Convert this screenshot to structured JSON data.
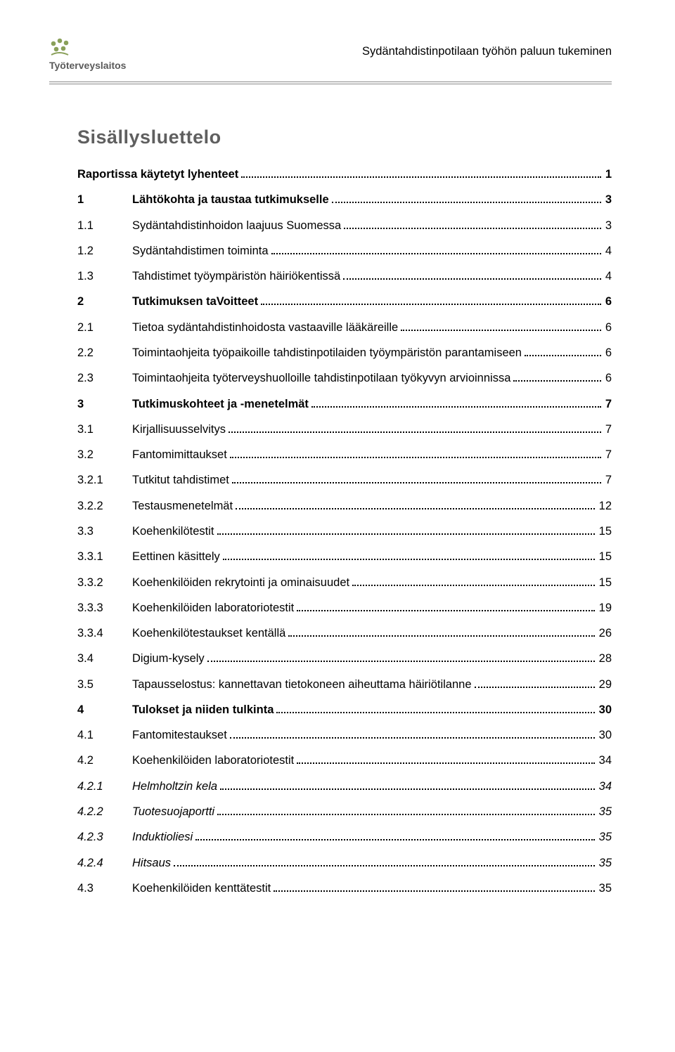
{
  "header": {
    "logo_word": "Työterveyslaitos",
    "doc_title": "Sydäntahdistinpotilaan työhön paluun tukeminen",
    "logo_color": "#8aa05a"
  },
  "toc_title": "Sisällysluettelo",
  "toc": [
    {
      "num": "",
      "label": "Raportissa käytetyt lyhenteet",
      "page": "1",
      "bold": true
    },
    {
      "num": "1",
      "label": "Lähtökohta ja taustaa tutkimukselle",
      "page": "3",
      "bold": true
    },
    {
      "num": "1.1",
      "label": "Sydäntahdistinhoidon laajuus Suomessa",
      "page": "3"
    },
    {
      "num": "1.2",
      "label": "Sydäntahdistimen toiminta",
      "page": "4"
    },
    {
      "num": "1.3",
      "label": "Tahdistimet työympäristön häiriökentissä",
      "page": "4"
    },
    {
      "num": "2",
      "label": "Tutkimuksen taVoitteet",
      "page": "6",
      "bold": true
    },
    {
      "num": "2.1",
      "label": "Tietoa sydäntahdistinhoidosta vastaaville lääkäreille",
      "page": "6"
    },
    {
      "num": "2.2",
      "label": "Toimintaohjeita työpaikoille tahdistinpotilaiden työympäristön parantamiseen",
      "page": "6"
    },
    {
      "num": "2.3",
      "label": "Toimintaohjeita työterveyshuolloille tahdistinpotilaan työkyvyn arvioinnissa",
      "page": "6"
    },
    {
      "num": "3",
      "label": "Tutkimuskohteet ja -menetelmät",
      "page": "7",
      "bold": true
    },
    {
      "num": "3.1",
      "label": "Kirjallisuusselvitys",
      "page": "7"
    },
    {
      "num": "3.2",
      "label": "Fantomimittaukset",
      "page": "7"
    },
    {
      "num": "3.2.1",
      "label": "Tutkitut tahdistimet",
      "page": "7"
    },
    {
      "num": "3.2.2",
      "label": "Testausmenetelmät",
      "page": "12"
    },
    {
      "num": "3.3",
      "label": "Koehenkilötestit",
      "page": "15"
    },
    {
      "num": "3.3.1",
      "label": "Eettinen käsittely",
      "page": "15"
    },
    {
      "num": "3.3.2",
      "label": "Koehenkilöiden rekrytointi ja ominaisuudet",
      "page": "15"
    },
    {
      "num": "3.3.3",
      "label": "Koehenkilöiden laboratoriotestit",
      "page": "19"
    },
    {
      "num": "3.3.4",
      "label": "Koehenkilötestaukset kentällä",
      "page": "26"
    },
    {
      "num": "3.4",
      "label": "Digium-kysely",
      "page": "28"
    },
    {
      "num": "3.5",
      "label": "Tapausselostus: kannettavan tietokoneen aiheuttama häiriötilanne",
      "page": "29"
    },
    {
      "num": "4",
      "label": "Tulokset ja niiden tulkinta",
      "page": "30",
      "bold": true
    },
    {
      "num": "4.1",
      "label": "Fantomitestaukset",
      "page": "30"
    },
    {
      "num": "4.2",
      "label": "Koehenkilöiden laboratoriotestit",
      "page": "34"
    },
    {
      "num": "4.2.1",
      "label": "Helmholtzin kela",
      "page": "34",
      "italic": true
    },
    {
      "num": "4.2.2",
      "label": "Tuotesuojaportti",
      "page": "35",
      "italic": true
    },
    {
      "num": "4.2.3",
      "label": "Induktioliesi",
      "page": "35",
      "italic": true
    },
    {
      "num": "4.2.4",
      "label": "Hitsaus",
      "page": "35",
      "italic": true
    },
    {
      "num": "4.3",
      "label": "Koehenkilöiden kenttätestit",
      "page": "35"
    }
  ]
}
